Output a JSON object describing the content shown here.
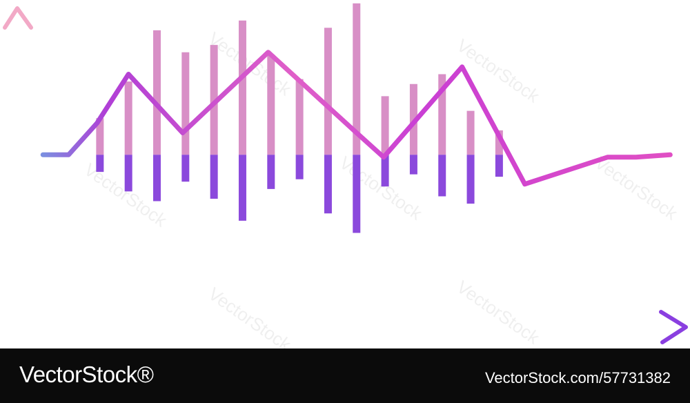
{
  "chart_data": {
    "type": "bar",
    "title": "",
    "xlabel": "",
    "ylabel": "",
    "ylim": [
      -3.5,
      3.0
    ],
    "baseline": 0,
    "bars": [
      {
        "x": 1.0,
        "top": 0.75,
        "bottom": -0.35
      },
      {
        "x": 2.0,
        "top": 1.5,
        "bottom": -0.75
      },
      {
        "x": 3.0,
        "top": 2.55,
        "bottom": -0.95
      },
      {
        "x": 4.0,
        "top": 2.1,
        "bottom": -0.55
      },
      {
        "x": 5.0,
        "top": 2.25,
        "bottom": -0.9
      },
      {
        "x": 6.0,
        "top": 2.75,
        "bottom": -1.35
      },
      {
        "x": 7.0,
        "top": 2.05,
        "bottom": -0.7
      },
      {
        "x": 8.0,
        "top": 1.55,
        "bottom": -0.5
      },
      {
        "x": 9.0,
        "top": 2.6,
        "bottom": -1.2
      },
      {
        "x": 10.0,
        "top": 3.1,
        "bottom": -1.6
      },
      {
        "x": 11.0,
        "top": 1.2,
        "bottom": -0.65
      },
      {
        "x": 12.0,
        "top": 1.45,
        "bottom": -0.4
      },
      {
        "x": 13.0,
        "top": 1.65,
        "bottom": -0.85
      },
      {
        "x": 14.0,
        "top": 0.9,
        "bottom": -1.0
      },
      {
        "x": 15.0,
        "top": 0.5,
        "bottom": -0.45
      }
    ],
    "line": {
      "x": [
        -1.0,
        -0.1,
        0.9,
        2.0,
        3.9,
        6.9,
        10.0,
        10.95,
        13.7,
        15.9,
        18.8,
        19.8,
        21.0
      ],
      "y": [
        0.0,
        0.0,
        0.65,
        1.65,
        0.45,
        2.1,
        0.45,
        -0.05,
        1.8,
        -0.6,
        -0.05,
        -0.05,
        0.0
      ]
    },
    "xlim": [
      -1.9,
      21.5
    ],
    "colors": {
      "axis_start": "#6f9be3",
      "axis_end": "#8a3fe0",
      "line": "#c23fd6",
      "bar_upper": "#d88fc6",
      "bar_lower": "#8b49dc"
    }
  },
  "watermark": "VectorStock",
  "footer": {
    "brand": "VectorStock®",
    "image_id": "VectorStock.com/57731382"
  }
}
